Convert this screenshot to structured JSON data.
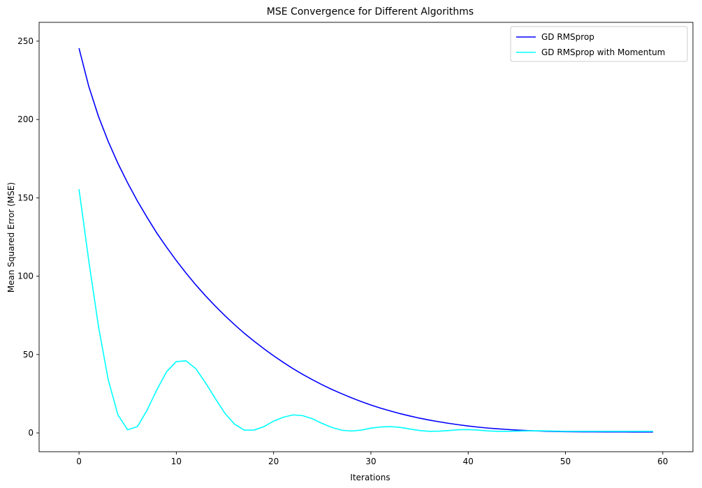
{
  "chart_data": {
    "type": "line",
    "title": "MSE Convergence for Different Algorithms",
    "xlabel": "Iterations",
    "ylabel": "Mean Squared Error (MSE)",
    "xlim": [
      -4.1,
      63.1
    ],
    "ylim": [
      -12,
      262
    ],
    "xticks": [
      0,
      10,
      20,
      30,
      40,
      50,
      60
    ],
    "yticks": [
      0,
      50,
      100,
      150,
      200,
      250
    ],
    "grid": false,
    "legend_position": "top-right",
    "series": [
      {
        "name": "GD RMSprop",
        "color": "#0000ff",
        "x": [
          0,
          1,
          2,
          3,
          4,
          5,
          6,
          7,
          8,
          9,
          10,
          11,
          12,
          13,
          14,
          15,
          16,
          17,
          18,
          19,
          20,
          21,
          22,
          23,
          24,
          25,
          26,
          27,
          28,
          29,
          30,
          31,
          32,
          33,
          34,
          35,
          36,
          37,
          38,
          39,
          40,
          41,
          42,
          43,
          44,
          45,
          46,
          47,
          48,
          49,
          50,
          51,
          52,
          53,
          54,
          55,
          56,
          57,
          58,
          59
        ],
        "values": [
          245.5,
          221.2,
          202.0,
          186.0,
          172.0,
          159.5,
          148.0,
          137.5,
          127.5,
          118.5,
          110.0,
          102.0,
          94.5,
          87.5,
          81.0,
          74.8,
          69.0,
          63.5,
          58.5,
          53.7,
          49.2,
          45.0,
          41.0,
          37.3,
          33.9,
          30.7,
          27.7,
          25.0,
          22.4,
          20.0,
          17.8,
          15.8,
          14.0,
          12.3,
          10.8,
          9.4,
          8.2,
          7.1,
          6.1,
          5.2,
          4.4,
          3.7,
          3.1,
          2.6,
          2.2,
          1.8,
          1.5,
          1.25,
          1.05,
          0.9,
          0.8,
          0.72,
          0.68,
          0.65,
          0.62,
          0.6,
          0.58,
          0.56,
          0.55,
          0.54
        ]
      },
      {
        "name": "GD RMSprop with Momentum",
        "color": "#00ffff",
        "x": [
          0,
          1,
          2,
          3,
          4,
          5,
          6,
          7,
          8,
          9,
          10,
          11,
          12,
          13,
          14,
          15,
          16,
          17,
          18,
          19,
          20,
          21,
          22,
          23,
          24,
          25,
          26,
          27,
          28,
          29,
          30,
          31,
          32,
          33,
          34,
          35,
          36,
          37,
          38,
          39,
          40,
          41,
          42,
          43,
          44,
          45,
          46,
          47,
          48,
          49,
          50,
          51,
          52,
          53,
          54,
          55,
          56,
          57,
          58,
          59
        ],
        "values": [
          155.5,
          110.0,
          68.0,
          34.0,
          11.5,
          2.0,
          4.0,
          14.5,
          27.5,
          39.0,
          45.5,
          46.0,
          41.0,
          32.0,
          22.0,
          12.5,
          5.5,
          1.8,
          1.8,
          4.0,
          7.5,
          10.0,
          11.5,
          11.0,
          9.0,
          6.0,
          3.5,
          1.7,
          1.2,
          1.8,
          3.0,
          3.8,
          4.0,
          3.5,
          2.5,
          1.5,
          1.0,
          1.1,
          1.5,
          2.0,
          2.1,
          1.8,
          1.3,
          1.0,
          1.0,
          1.1,
          1.3,
          1.4,
          1.3,
          1.1,
          1.0,
          1.0,
          1.0,
          1.0,
          1.0,
          1.0,
          1.0,
          1.0,
          1.0,
          1.0
        ]
      }
    ]
  }
}
